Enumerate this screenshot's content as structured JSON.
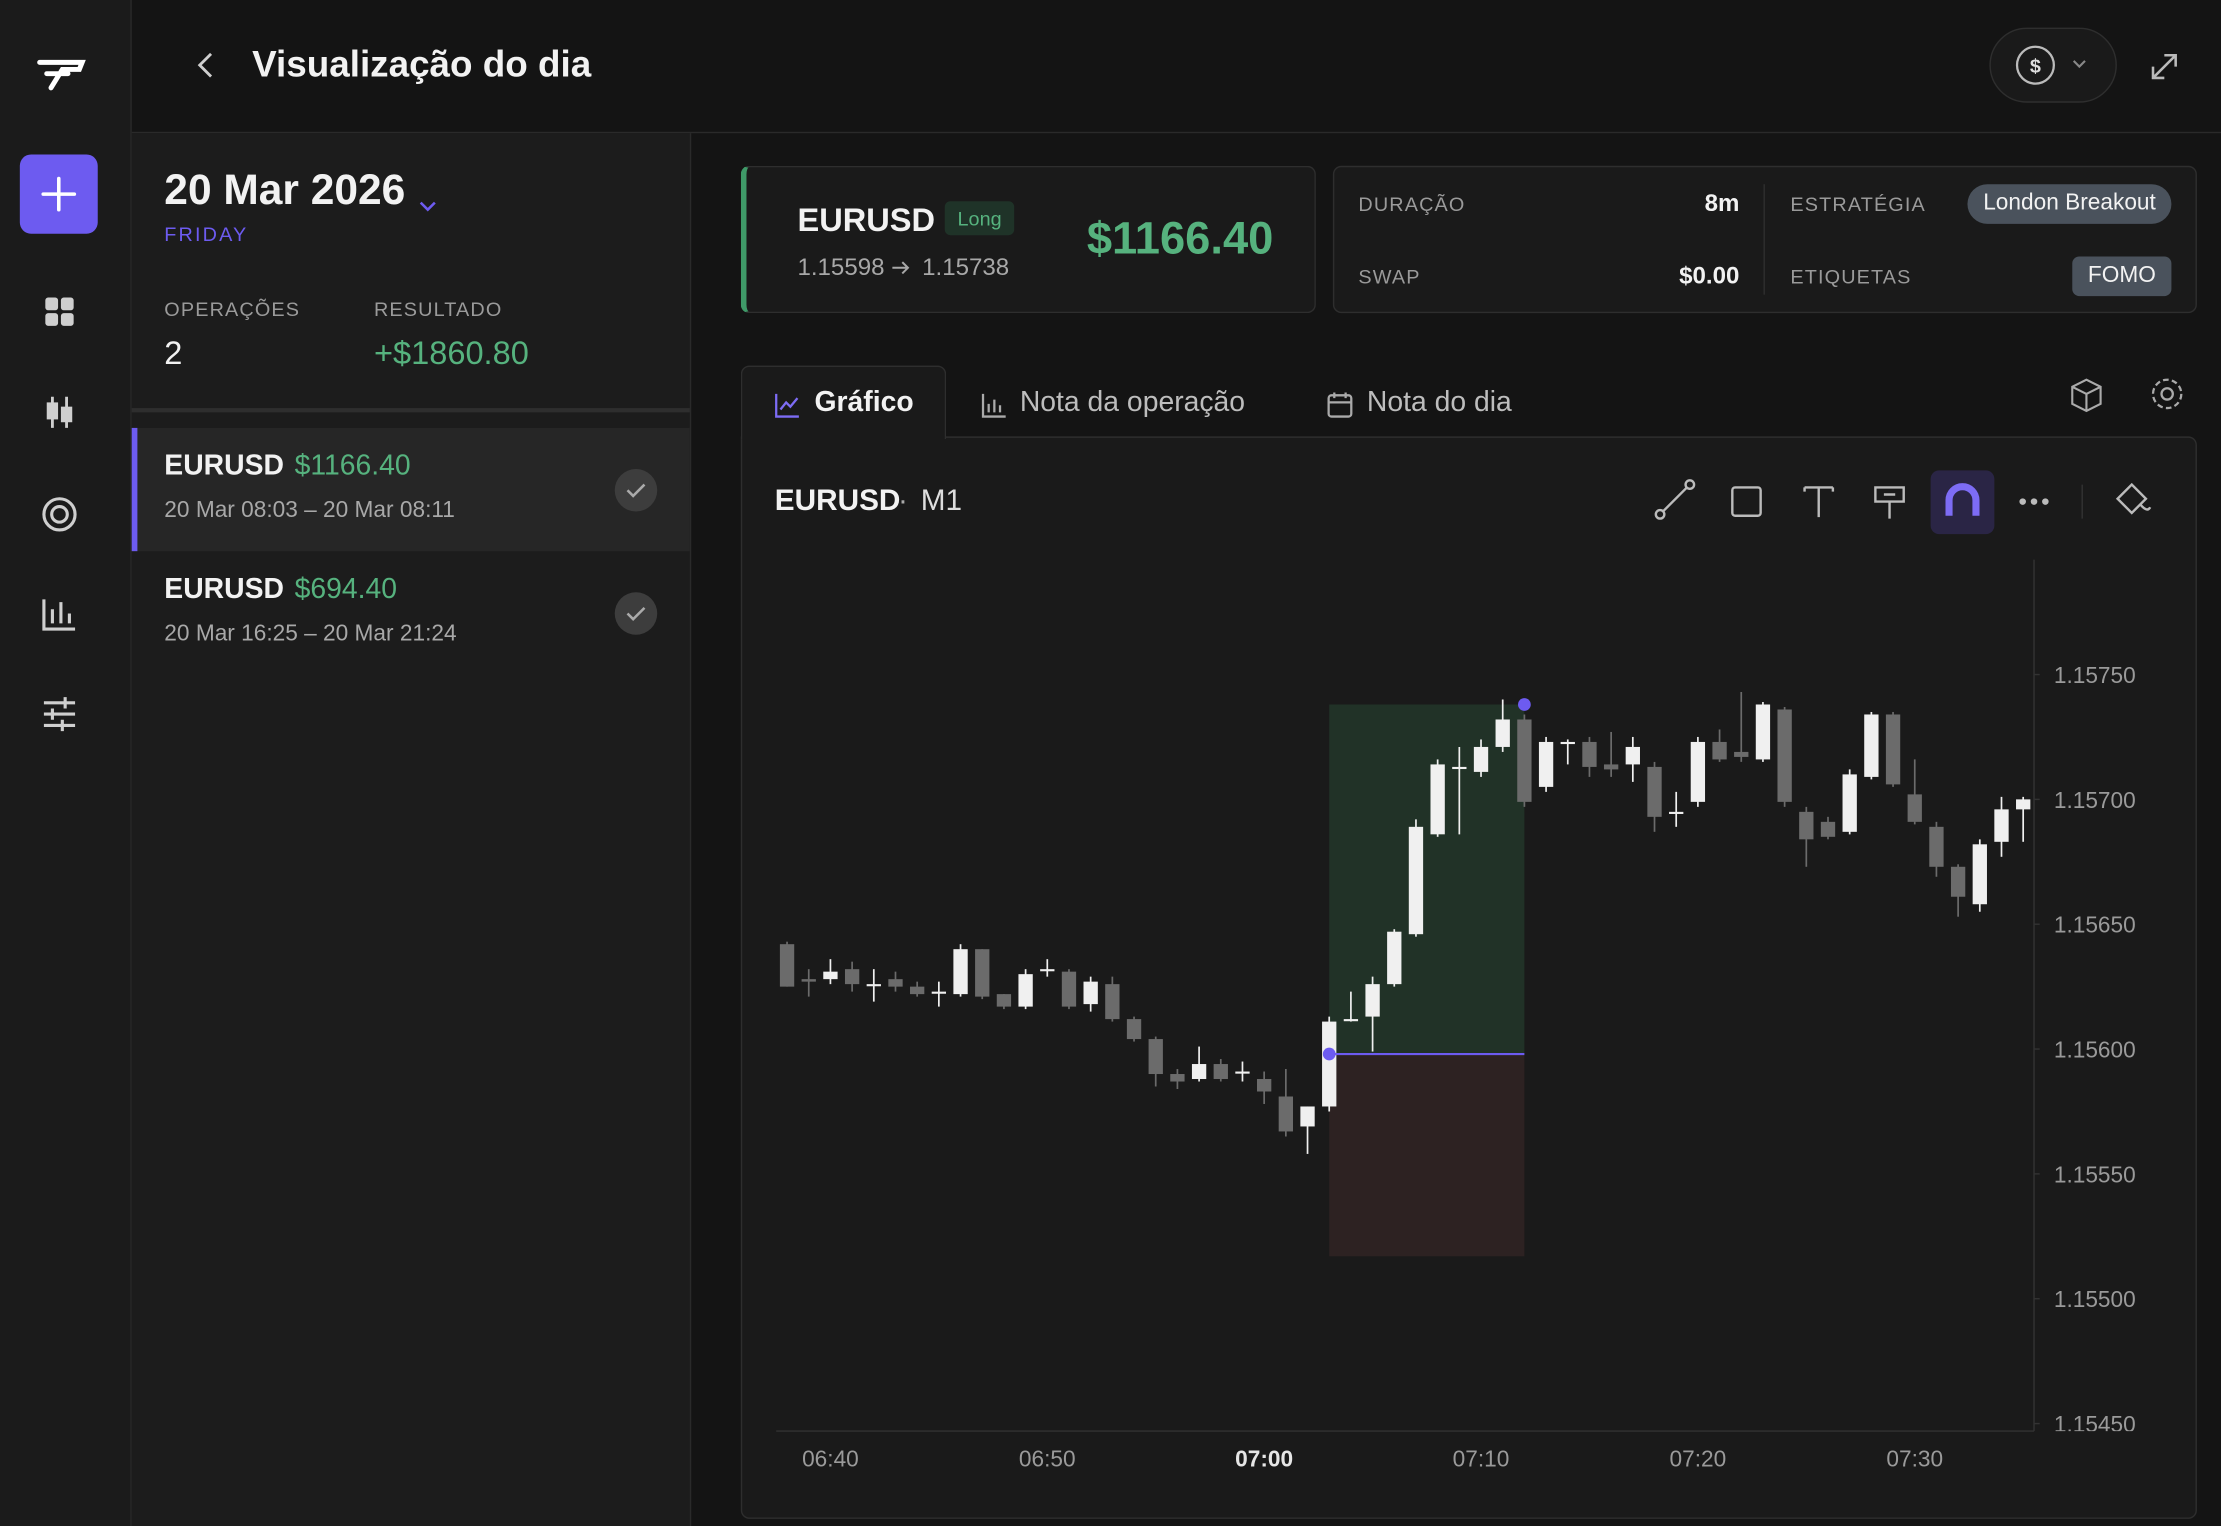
{
  "header": {
    "title": "Visualização do dia"
  },
  "day": {
    "date": "20 Mar 2026",
    "weekday": "FRIDAY",
    "ops_label": "OPERAÇÕES",
    "ops_value": 2,
    "result_label": "RESULTADO",
    "result_value": "+$1860.80"
  },
  "trades": [
    {
      "symbol": "EURUSD",
      "pnl": "$1166.40",
      "time": "20 Mar 08:03 – 20 Mar 08:11"
    },
    {
      "symbol": "EURUSD",
      "pnl": "$694.40",
      "time": "20 Mar 16:25 – 20 Mar 21:24"
    }
  ],
  "trade": {
    "symbol": "EURUSD",
    "side": "Long",
    "entry": 1.15598,
    "exit": 1.15738,
    "pnl": "$1166.40"
  },
  "stats": {
    "duration_label": "DURAÇÃO",
    "duration": "8m",
    "swap_label": "SWAP",
    "swap": "$0.00",
    "strategy_label": "ESTRATÉGIA",
    "strategy": "London Breakout",
    "tags_label": "ETIQUETAS",
    "tags": "FOMO"
  },
  "tabs": [
    "Gráfico",
    "Nota da operação",
    "Nota do dia"
  ],
  "chart_data": {
    "type": "candlestick",
    "symbol": "EURUSD",
    "timeframe": "M1",
    "x": [
      "06:38",
      "06:39",
      "06:40",
      "06:41",
      "06:42",
      "06:43",
      "06:44",
      "06:45",
      "06:46",
      "06:47",
      "06:48",
      "06:49",
      "06:50",
      "06:51",
      "06:52",
      "06:53",
      "06:54",
      "06:55",
      "06:56",
      "06:57",
      "06:58",
      "06:59",
      "07:00",
      "07:01",
      "07:02",
      "07:03",
      "07:04",
      "07:05",
      "07:06",
      "07:07",
      "07:08",
      "07:09",
      "07:10",
      "07:11",
      "07:12",
      "07:13",
      "07:14",
      "07:15",
      "07:16",
      "07:17",
      "07:18",
      "07:19",
      "07:20",
      "07:21",
      "07:22",
      "07:23",
      "07:24",
      "07:25",
      "07:26",
      "07:27",
      "07:28",
      "07:29",
      "07:30",
      "07:31",
      "07:32",
      "07:33",
      "07:34",
      "07:35"
    ],
    "open": [
      1.15642,
      1.15628,
      1.15628,
      1.15632,
      1.15626,
      1.15628,
      1.15625,
      1.15623,
      1.15622,
      1.1564,
      1.15622,
      1.15617,
      1.15632,
      1.15631,
      1.15618,
      1.15626,
      1.15612,
      1.15604,
      1.1559,
      1.15588,
      1.15594,
      1.15591,
      1.15588,
      1.15581,
      1.15569,
      1.15577,
      1.15612,
      1.15613,
      1.15626,
      1.15646,
      1.15686,
      1.15713,
      1.15711,
      1.15721,
      1.15732,
      1.15705,
      1.15723,
      1.15723,
      1.15714,
      1.15714,
      1.15713,
      1.15695,
      1.15699,
      1.15723,
      1.15719,
      1.15716,
      1.15736,
      1.15695,
      1.15691,
      1.15687,
      1.15709,
      1.15734,
      1.15702,
      1.15689,
      1.15673,
      1.15658,
      1.15683,
      1.15696
    ],
    "high": [
      1.15643,
      1.15632,
      1.15636,
      1.15635,
      1.15632,
      1.15631,
      1.15627,
      1.15627,
      1.15642,
      1.1564,
      1.15622,
      1.15632,
      1.15636,
      1.15632,
      1.15629,
      1.15629,
      1.15613,
      1.15605,
      1.15592,
      1.15601,
      1.15596,
      1.15595,
      1.15591,
      1.15592,
      1.15577,
      1.15613,
      1.15623,
      1.15629,
      1.15648,
      1.15692,
      1.15716,
      1.15721,
      1.15724,
      1.1574,
      1.15734,
      1.15725,
      1.15724,
      1.15725,
      1.15727,
      1.15725,
      1.15715,
      1.15703,
      1.15725,
      1.15728,
      1.15743,
      1.15739,
      1.15737,
      1.15697,
      1.15693,
      1.15712,
      1.15735,
      1.15735,
      1.15716,
      1.15691,
      1.15674,
      1.15684,
      1.15701,
      1.15701
    ],
    "low": [
      1.15625,
      1.15621,
      1.15626,
      1.15623,
      1.15619,
      1.15623,
      1.15621,
      1.15617,
      1.15621,
      1.1562,
      1.15616,
      1.15616,
      1.15629,
      1.15616,
      1.15615,
      1.15611,
      1.15603,
      1.15585,
      1.15584,
      1.15587,
      1.15587,
      1.15587,
      1.15578,
      1.15565,
      1.15558,
      1.15575,
      1.15611,
      1.15599,
      1.15625,
      1.15645,
      1.15685,
      1.15686,
      1.15709,
      1.15719,
      1.15697,
      1.15703,
      1.15714,
      1.15709,
      1.15709,
      1.15707,
      1.15687,
      1.15689,
      1.15697,
      1.15715,
      1.15715,
      1.15715,
      1.15697,
      1.15673,
      1.15684,
      1.15686,
      1.15708,
      1.15705,
      1.1569,
      1.15669,
      1.15653,
      1.15655,
      1.15677,
      1.15683
    ],
    "close": [
      1.15625,
      1.15627,
      1.15631,
      1.15626,
      1.15626,
      1.15625,
      1.15622,
      1.15623,
      1.1564,
      1.15621,
      1.15617,
      1.1563,
      1.15632,
      1.15617,
      1.15627,
      1.15612,
      1.15604,
      1.1559,
      1.15587,
      1.15594,
      1.15588,
      1.15591,
      1.15583,
      1.15567,
      1.15577,
      1.15611,
      1.15612,
      1.15626,
      1.15647,
      1.15689,
      1.15714,
      1.15713,
      1.15721,
      1.15732,
      1.15699,
      1.15723,
      1.15723,
      1.15713,
      1.15712,
      1.15721,
      1.15693,
      1.15695,
      1.15723,
      1.15716,
      1.15717,
      1.15738,
      1.15699,
      1.15684,
      1.15685,
      1.1571,
      1.15734,
      1.15706,
      1.15691,
      1.15673,
      1.15661,
      1.15682,
      1.15696,
      1.157
    ],
    "up_color": "#f0f0f0",
    "down_color": "#6b6b6b",
    "position": {
      "entry_time": "07:03",
      "exit_time": "07:12",
      "stop": 1.15517,
      "profit_color": "#213227",
      "loss_color": "#2d2222",
      "marker_color": "#6d5bf0"
    },
    "ylim": [
      1.15447,
      1.15796
    ],
    "yticks": [
      {
        "value": 1.1575,
        "label": "1.15750"
      },
      {
        "value": 1.157,
        "label": "1.15700"
      },
      {
        "value": 1.1565,
        "label": "1.15650"
      },
      {
        "value": 1.156,
        "label": "1.15600"
      },
      {
        "value": 1.1555,
        "label": "1.15550"
      },
      {
        "value": 1.155,
        "label": "1.15500"
      },
      {
        "value": 1.1545,
        "label": "1.15450"
      }
    ],
    "xticks": [
      "06:40",
      "06:50",
      "07:00",
      "07:10",
      "07:20",
      "07:30"
    ]
  }
}
